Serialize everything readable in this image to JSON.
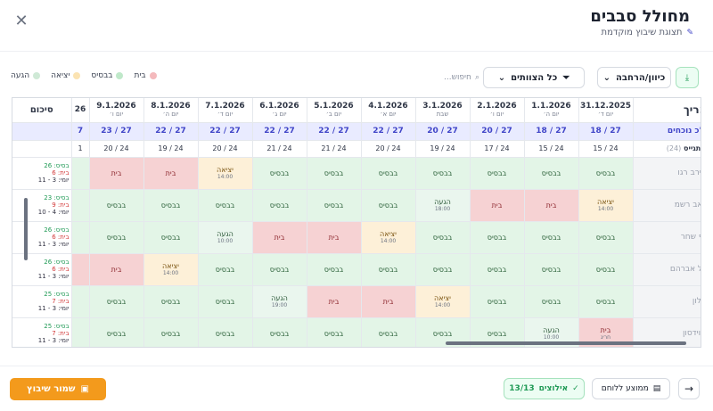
{
  "header": {
    "title": "מחולל סבבים",
    "subtitle": "תצוגת שיבוץ מוקדמת"
  },
  "legend": [
    {
      "label": "בית",
      "color": "#f4b9bc"
    },
    {
      "label": "בבסיס",
      "color": "#bfe8c9"
    },
    {
      "label": "יציאה",
      "color": "#fbe3b2"
    },
    {
      "label": "הגעה",
      "color": "#cfe9d6"
    }
  ],
  "toolbar": {
    "orientation_label": "כיוון/הרחבה",
    "teams_label": "כל הצוותים",
    "search_placeholder": "חיפוש..."
  },
  "grid": {
    "date_label": "תאריך",
    "total_label": "סה\"כ נוכחים",
    "sub_label": "מתגייס",
    "sub_count": "(24)",
    "sum_header": "סיכום",
    "dates": [
      {
        "date": "31.12.2025",
        "day": "יום ד׳",
        "total": "18 / 27",
        "sub": "15 / 24"
      },
      {
        "date": "1.1.2026",
        "day": "יום ה׳",
        "total": "18 / 27",
        "sub": "15 / 24"
      },
      {
        "date": "2.1.2026",
        "day": "יום ו׳",
        "total": "20 / 27",
        "sub": "17 / 24"
      },
      {
        "date": "3.1.2026",
        "day": "שבת",
        "total": "20 / 27",
        "sub": "19 / 24"
      },
      {
        "date": "4.1.2026",
        "day": "יום א׳",
        "total": "22 / 27",
        "sub": "20 / 24"
      },
      {
        "date": "5.1.2026",
        "day": "יום ב׳",
        "total": "22 / 27",
        "sub": "21 / 24"
      },
      {
        "date": "6.1.2026",
        "day": "יום ג׳",
        "total": "22 / 27",
        "sub": "21 / 24"
      },
      {
        "date": "7.1.2026",
        "day": "יום ד׳",
        "total": "22 / 27",
        "sub": "20 / 24"
      },
      {
        "date": "8.1.2026",
        "day": "יום ה׳",
        "total": "22 / 27",
        "sub": "19 / 24"
      },
      {
        "date": "9.1.2026",
        "day": "יום ו׳",
        "total": "23 / 27",
        "sub": "20 / 24"
      },
      {
        "date": "26",
        "day": "",
        "total": "7",
        "sub": "1"
      }
    ],
    "rows": [
      {
        "name": "מירב רגו...",
        "sum": [
          "בסיס: 26",
          "בית: 6",
          "יומי: 3 - 11"
        ],
        "cells": [
          [
            "base",
            "בבסיס",
            ""
          ],
          [
            "base",
            "בבסיס",
            ""
          ],
          [
            "base",
            "בבסיס",
            ""
          ],
          [
            "base",
            "בבסיס",
            ""
          ],
          [
            "base",
            "בבסיס",
            ""
          ],
          [
            "base",
            "בבסיס",
            ""
          ],
          [
            "base",
            "בבסיס",
            ""
          ],
          [
            "exit",
            "יציאה",
            "14:00"
          ],
          [
            "home",
            "בית",
            ""
          ],
          [
            "home",
            "בית",
            ""
          ],
          [
            "base",
            "",
            ""
          ]
        ]
      },
      {
        "name": "יואב רשמ...",
        "sum": [
          "בסיס: 23",
          "בית: 9",
          "יומי: 4 - 10"
        ],
        "cells": [
          [
            "exit",
            "יציאה",
            "14:00"
          ],
          [
            "home",
            "בית",
            ""
          ],
          [
            "home",
            "בית",
            ""
          ],
          [
            "arr",
            "הגעה",
            "18:00"
          ],
          [
            "base",
            "בבסיס",
            ""
          ],
          [
            "base",
            "בבסיס",
            ""
          ],
          [
            "base",
            "בבסיס",
            ""
          ],
          [
            "base",
            "בבסיס",
            ""
          ],
          [
            "base",
            "בבסיס",
            ""
          ],
          [
            "base",
            "בבסיס",
            ""
          ],
          [
            "base",
            "",
            ""
          ]
        ]
      },
      {
        "name": "אסף שחר",
        "sum": [
          "בסיס: 26",
          "בית: 6",
          "יומי: 3 - 11"
        ],
        "cells": [
          [
            "base",
            "בבסיס",
            ""
          ],
          [
            "base",
            "בבסיס",
            ""
          ],
          [
            "base",
            "בבסיס",
            ""
          ],
          [
            "base",
            "בבסיס",
            ""
          ],
          [
            "exit",
            "יציאה",
            "14:00"
          ],
          [
            "home",
            "בית",
            ""
          ],
          [
            "home",
            "בית",
            ""
          ],
          [
            "arr",
            "הגעה",
            "10:00"
          ],
          [
            "base",
            "בבסיס",
            ""
          ],
          [
            "base",
            "בבסיס",
            ""
          ],
          [
            "base",
            "",
            ""
          ]
        ]
      },
      {
        "name": "הולל אברהם",
        "sum": [
          "בסיס: 26",
          "בית: 6",
          "יומי: 3 - 11"
        ],
        "cells": [
          [
            "base",
            "בבסיס",
            ""
          ],
          [
            "base",
            "בבסיס",
            ""
          ],
          [
            "base",
            "בבסיס",
            ""
          ],
          [
            "base",
            "בבסיס",
            ""
          ],
          [
            "base",
            "בבסיס",
            ""
          ],
          [
            "base",
            "בבסיס",
            ""
          ],
          [
            "base",
            "בבסיס",
            ""
          ],
          [
            "base",
            "בבסיס",
            ""
          ],
          [
            "exit",
            "יציאה",
            "14:00"
          ],
          [
            "home",
            "בית",
            ""
          ],
          [
            "home",
            "",
            ""
          ]
        ]
      },
      {
        "name": "אלון...",
        "sum": [
          "בסיס: 25",
          "בית: 7",
          "יומי: 3 - 11"
        ],
        "cells": [
          [
            "base",
            "בבסיס",
            ""
          ],
          [
            "base",
            "בבסיס",
            ""
          ],
          [
            "base",
            "בבסיס",
            ""
          ],
          [
            "exit",
            "יציאה",
            "14:00"
          ],
          [
            "home",
            "בית",
            ""
          ],
          [
            "home",
            "בית",
            ""
          ],
          [
            "arr",
            "הגעה",
            "19:00"
          ],
          [
            "base",
            "בבסיס",
            ""
          ],
          [
            "base",
            "בבסיס",
            ""
          ],
          [
            "base",
            "בבסיס",
            ""
          ],
          [
            "base",
            "",
            ""
          ]
        ]
      },
      {
        "name": "בן דוידסון",
        "sum": [
          "בסיס: 25",
          "בית: 7",
          "יומי: 3 - 11"
        ],
        "cells": [
          [
            "home",
            "בית",
            "חריג"
          ],
          [
            "arr",
            "הגעה",
            "10:00"
          ],
          [
            "base",
            "בבסיס",
            ""
          ],
          [
            "base",
            "בבסיס",
            ""
          ],
          [
            "base",
            "בבסיס",
            ""
          ],
          [
            "base",
            "בבסיס",
            ""
          ],
          [
            "base",
            "בבסיס",
            ""
          ],
          [
            "base",
            "בבסיס",
            ""
          ],
          [
            "base",
            "בבסיס",
            ""
          ],
          [
            "base",
            "בבסיס",
            ""
          ],
          [
            "base",
            "",
            ""
          ]
        ]
      }
    ]
  },
  "footer": {
    "save_label": "שמור שיבוץ",
    "constraints_label": "אילוצים",
    "constraints_count": "13/13",
    "board_label": "ממוצע ללוחם"
  }
}
